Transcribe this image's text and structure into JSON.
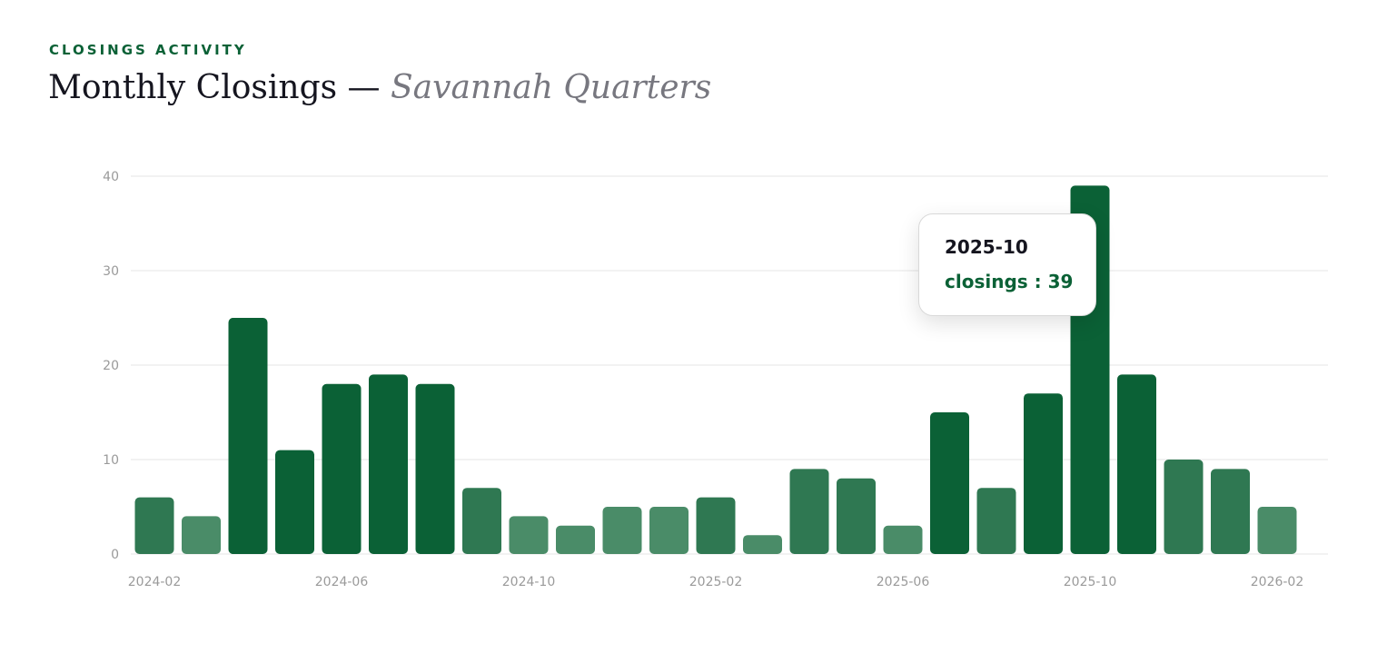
{
  "header": {
    "eyebrow": "CLOSINGS ACTIVITY",
    "title": "Monthly Closings",
    "separator": " — ",
    "subtitle": "Savannah Quarters"
  },
  "tooltip": {
    "label": "2025-10",
    "series": "closings",
    "value": "39"
  },
  "colors": {
    "dark": "#0b6136",
    "medium": "#2f7852",
    "light": "#4a8c68",
    "grid": "#eeeeee",
    "axis_text": "#9a9a9a"
  },
  "chart_data": {
    "type": "bar",
    "categories": [
      "2024-02",
      "2024-03",
      "2024-04",
      "2024-05",
      "2024-06",
      "2024-07",
      "2024-08",
      "2024-09",
      "2024-10",
      "2024-11",
      "2024-12",
      "2025-01",
      "2025-02",
      "2025-03",
      "2025-04",
      "2025-05",
      "2025-06",
      "2025-07",
      "2025-08",
      "2025-09",
      "2025-10",
      "2025-11",
      "2025-12",
      "2026-01",
      "2026-02"
    ],
    "x_tick_labels": [
      "2024-02",
      "2024-06",
      "2024-10",
      "2025-02",
      "2025-06",
      "2025-10",
      "2026-02"
    ],
    "series": [
      {
        "name": "closings",
        "values": [
          6,
          4,
          25,
          11,
          18,
          19,
          18,
          7,
          4,
          3,
          5,
          5,
          6,
          2,
          9,
          8,
          3,
          15,
          7,
          17,
          39,
          19,
          10,
          9,
          5
        ]
      }
    ],
    "ylim": [
      0,
      40
    ],
    "y_ticks": [
      0,
      10,
      20,
      30,
      40
    ],
    "grid": true,
    "highlighted_category": "2025-10"
  }
}
